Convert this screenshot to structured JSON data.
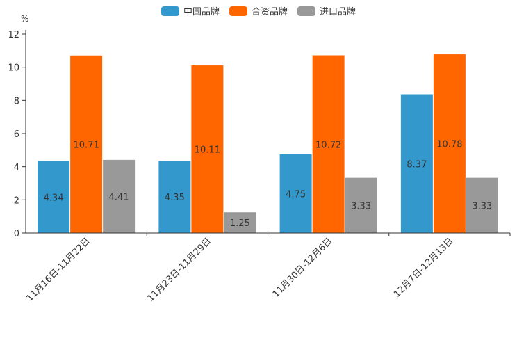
{
  "chart_data": {
    "type": "bar",
    "title": "",
    "unit_label": "%",
    "xlabel": "",
    "ylabel": "%",
    "ylim": [
      0,
      12
    ],
    "yticks": [
      0,
      2,
      4,
      6,
      8,
      10,
      12
    ],
    "categories": [
      "11月16日-11月22日",
      "11月23日-11月29日",
      "11月30日-12月6日",
      "12月7日-12月13日"
    ],
    "series": [
      {
        "name": "中国品牌",
        "color": "#3399cc",
        "values": [
          4.34,
          4.35,
          4.75,
          8.37
        ]
      },
      {
        "name": "合资品牌",
        "color": "#ff6600",
        "values": [
          10.71,
          10.11,
          10.72,
          10.78
        ]
      },
      {
        "name": "进口品牌",
        "color": "#999999",
        "values": [
          4.41,
          1.25,
          3.33,
          3.33
        ]
      }
    ]
  }
}
